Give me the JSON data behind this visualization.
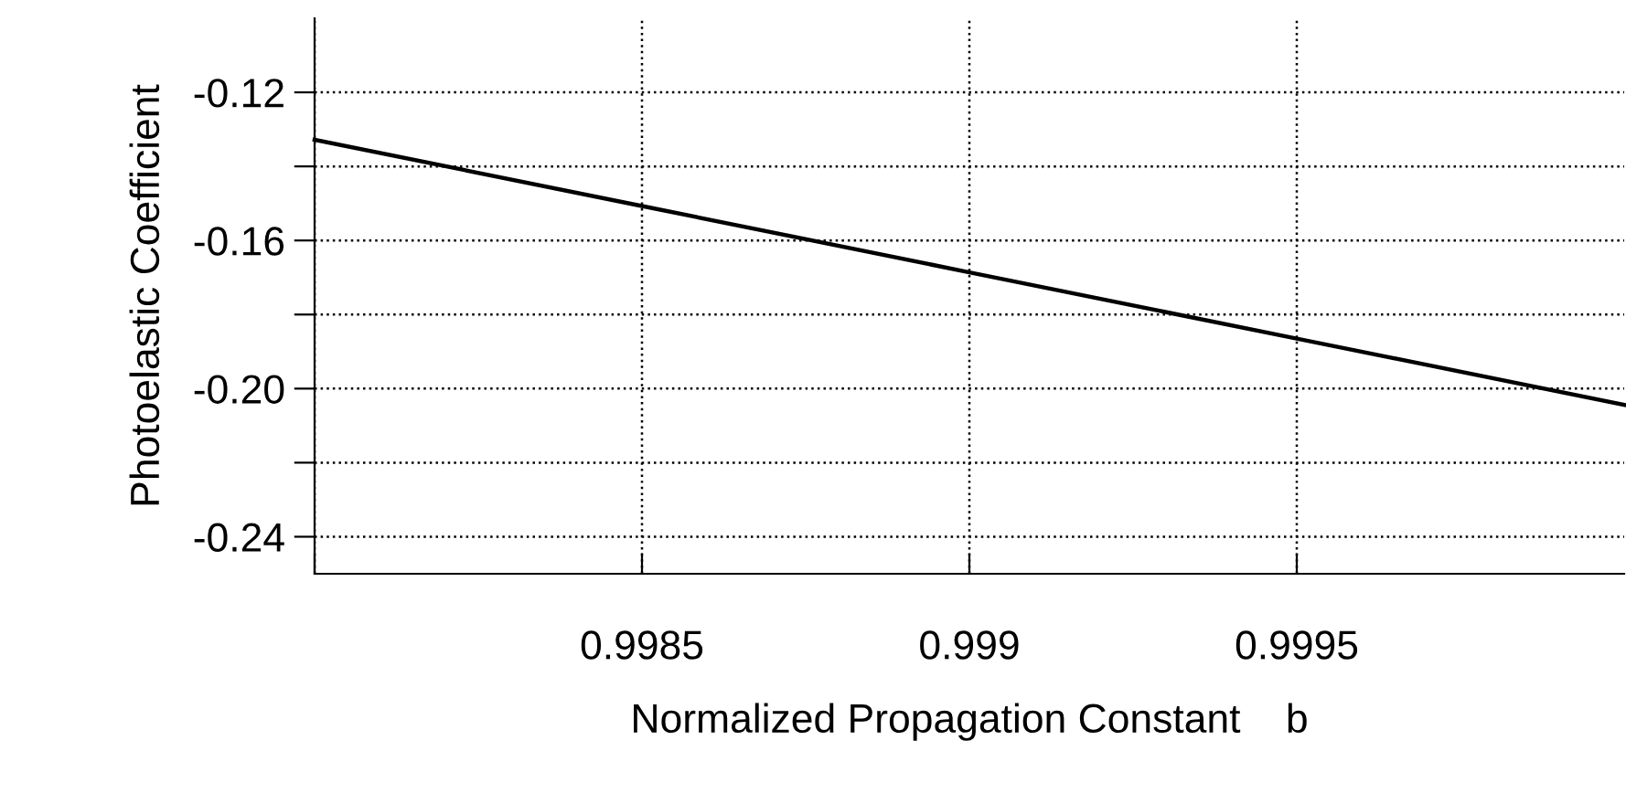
{
  "chart_data": {
    "type": "line",
    "xlabel": "Normalized Propagation Constant    b",
    "ylabel": "Photoelastic Coefficient",
    "x": [
      0.998,
      0.9985,
      0.999,
      0.9995,
      1.0
    ],
    "values": [
      -0.1328,
      -0.1507,
      -0.1686,
      -0.1865,
      -0.2044
    ],
    "color": "#000000",
    "xlim": [
      0.998,
      1.0
    ],
    "xticks": [
      {
        "value": 0.998,
        "label": null
      },
      0.9985,
      0.999,
      0.9995
    ],
    "ylim": [
      -0.25,
      -0.1
    ],
    "yticks": [
      -0.12,
      {
        "value": -0.14,
        "label": null
      },
      -0.16,
      {
        "value": -0.18,
        "label": null
      },
      {
        "value": -0.2,
        "label": "-0.20"
      },
      {
        "value": -0.22,
        "label": null
      },
      -0.24
    ],
    "grid": true,
    "line_style": "solid",
    "marker": "none"
  }
}
